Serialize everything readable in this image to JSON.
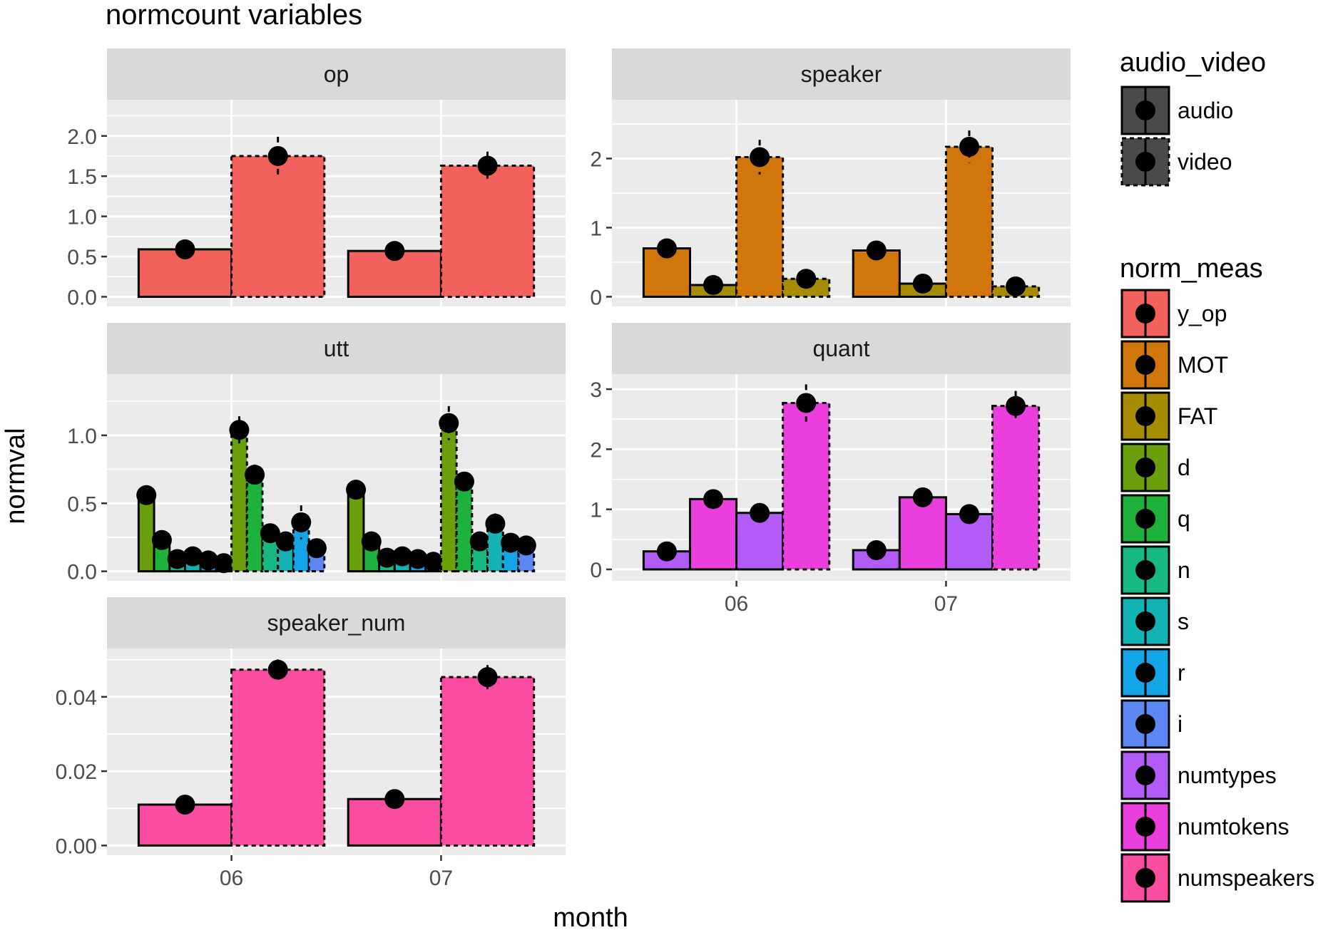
{
  "title": "normcount variables",
  "xlabel": "month",
  "ylabel": "normval",
  "colors": {
    "y_op": "#F2615C",
    "MOT": "#D1760A",
    "FAT": "#A68C00",
    "d": "#6A9E0B",
    "q": "#1EB13B",
    "n": "#17B884",
    "s": "#13B2B4",
    "r": "#14A4E8",
    "i": "#5C86F2",
    "numtypes": "#B25BF6",
    "numtokens": "#EA3FDD",
    "numspeakers": "#FA4CA0",
    "panel_bg": "#EBEBEB",
    "strip_bg": "#D9D9D9"
  },
  "legend": {
    "audio_video": {
      "title": "audio_video",
      "items": [
        "audio",
        "video"
      ]
    },
    "norm_meas": {
      "title": "norm_meas",
      "items": [
        "y_op",
        "MOT",
        "FAT",
        "d",
        "q",
        "n",
        "s",
        "r",
        "i",
        "numtypes",
        "numtokens",
        "numspeakers"
      ]
    }
  },
  "chart_data": [
    {
      "panel": "op",
      "type": "bar",
      "categories": [
        "06",
        "07"
      ],
      "ticks": [
        "0.0",
        "0.5",
        "1.0",
        "1.5",
        "2.0"
      ],
      "ylim": [
        -0.12,
        2.45
      ],
      "series": [
        {
          "name": "y_op",
          "audio_video": "audio",
          "values": [
            0.59,
            0.57
          ],
          "error": [
            0,
            0
          ]
        },
        {
          "name": "y_op",
          "audio_video": "video",
          "values": [
            1.75,
            1.63
          ],
          "error": [
            0.48,
            0.35
          ]
        }
      ]
    },
    {
      "panel": "speaker",
      "type": "bar",
      "categories": [
        "06",
        "07"
      ],
      "ticks": [
        "0",
        "1",
        "2"
      ],
      "ylim": [
        -0.14,
        2.85
      ],
      "series": [
        {
          "name": "MOT",
          "audio_video": "audio",
          "values": [
            0.7,
            0.67
          ],
          "error": [
            0,
            0
          ]
        },
        {
          "name": "FAT",
          "audio_video": "audio",
          "values": [
            0.17,
            0.19
          ],
          "error": [
            0,
            0
          ]
        },
        {
          "name": "MOT",
          "audio_video": "video",
          "values": [
            2.02,
            2.17
          ],
          "error": [
            0.5,
            0.47
          ]
        },
        {
          "name": "FAT",
          "audio_video": "video",
          "values": [
            0.26,
            0.15
          ],
          "error": [
            0,
            0
          ]
        }
      ]
    },
    {
      "panel": "utt",
      "type": "bar",
      "categories": [
        "06",
        "07"
      ],
      "ticks": [
        "0.0",
        "0.5",
        "1.0"
      ],
      "ylim": [
        -0.07,
        1.45
      ],
      "series": [
        {
          "name": "d",
          "audio_video": "audio",
          "values": [
            0.56,
            0.6
          ],
          "error": [
            0.08,
            0.08
          ]
        },
        {
          "name": "q",
          "audio_video": "audio",
          "values": [
            0.23,
            0.22
          ],
          "error": [
            0,
            0
          ]
        },
        {
          "name": "n",
          "audio_video": "audio",
          "values": [
            0.09,
            0.1
          ],
          "error": [
            0,
            0
          ]
        },
        {
          "name": "s",
          "audio_video": "audio",
          "values": [
            0.11,
            0.11
          ],
          "error": [
            0,
            0
          ]
        },
        {
          "name": "r",
          "audio_video": "audio",
          "values": [
            0.08,
            0.09
          ],
          "error": [
            0,
            0
          ]
        },
        {
          "name": "i",
          "audio_video": "audio",
          "values": [
            0.06,
            0.07
          ],
          "error": [
            0,
            0
          ]
        },
        {
          "name": "d",
          "audio_video": "video",
          "values": [
            1.04,
            1.09
          ],
          "error": [
            0.2,
            0.25
          ]
        },
        {
          "name": "q",
          "audio_video": "video",
          "values": [
            0.71,
            0.66
          ],
          "error": [
            0.15,
            0.14
          ]
        },
        {
          "name": "n",
          "audio_video": "video",
          "values": [
            0.28,
            0.22
          ],
          "error": [
            0,
            0
          ]
        },
        {
          "name": "s",
          "audio_video": "video",
          "values": [
            0.22,
            0.35
          ],
          "error": [
            0,
            0.15
          ]
        },
        {
          "name": "r",
          "audio_video": "video",
          "values": [
            0.36,
            0.21
          ],
          "error": [
            0.25,
            0
          ]
        },
        {
          "name": "i",
          "audio_video": "video",
          "values": [
            0.17,
            0.19
          ],
          "error": [
            0,
            0
          ]
        }
      ]
    },
    {
      "panel": "quant",
      "type": "bar",
      "categories": [
        "06",
        "07"
      ],
      "ticks": [
        "0",
        "1",
        "2",
        "3"
      ],
      "ylim": [
        -0.19,
        3.25
      ],
      "series": [
        {
          "name": "numtypes",
          "audio_video": "audio",
          "values": [
            0.3,
            0.32
          ],
          "error": [
            0,
            0
          ]
        },
        {
          "name": "numtokens",
          "audio_video": "audio",
          "values": [
            1.17,
            1.2
          ],
          "error": [
            0,
            0
          ]
        },
        {
          "name": "numtypes",
          "audio_video": "audio",
          "values": [
            0.94,
            0.92
          ],
          "error": [
            0,
            0
          ]
        },
        {
          "name": "numtokens",
          "audio_video": "video",
          "values": [
            2.77,
            2.72
          ],
          "error": [
            0.62,
            0.5
          ]
        }
      ]
    },
    {
      "panel": "speaker_num",
      "type": "bar",
      "categories": [
        "06",
        "07"
      ],
      "ticks": [
        "0.00",
        "0.02",
        "0.04"
      ],
      "ylim": [
        -0.0026,
        0.053
      ],
      "series": [
        {
          "name": "numspeakers",
          "audio_video": "audio",
          "values": [
            0.011,
            0.0125
          ],
          "error": [
            0,
            0
          ]
        },
        {
          "name": "numspeakers",
          "audio_video": "video",
          "values": [
            0.0473,
            0.0453
          ],
          "error": [
            0.0055,
            0.0065
          ]
        }
      ]
    }
  ]
}
